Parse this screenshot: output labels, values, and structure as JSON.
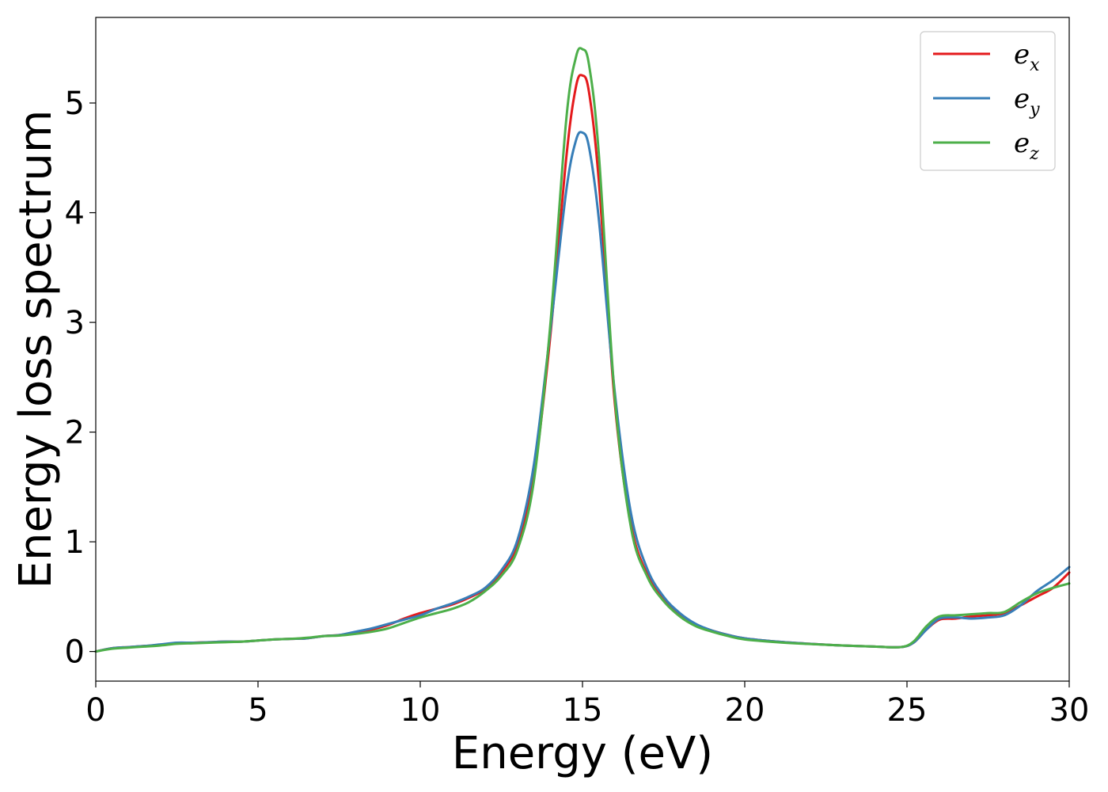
{
  "chart_data": {
    "type": "line",
    "title": "",
    "xlabel": "Energy (eV)",
    "ylabel": "Energy loss spectrum",
    "xlim": [
      0,
      30
    ],
    "ylim": [
      -0.27,
      5.78
    ],
    "xticks": [
      0,
      5,
      10,
      15,
      20,
      25,
      30
    ],
    "yticks": [
      0,
      1,
      2,
      3,
      4,
      5
    ],
    "grid": false,
    "legend_position": "top-right",
    "series": [
      {
        "name": "e",
        "subscript": "x",
        "color": "#e41a1c",
        "points": [
          [
            0,
            0.0
          ],
          [
            0.5,
            0.03
          ],
          [
            1,
            0.04
          ],
          [
            1.5,
            0.05
          ],
          [
            2,
            0.06
          ],
          [
            2.5,
            0.075
          ],
          [
            3,
            0.08
          ],
          [
            3.5,
            0.085
          ],
          [
            4,
            0.09
          ],
          [
            4.5,
            0.09
          ],
          [
            5,
            0.1
          ],
          [
            5.5,
            0.11
          ],
          [
            6,
            0.115
          ],
          [
            6.5,
            0.12
          ],
          [
            7,
            0.14
          ],
          [
            7.5,
            0.15
          ],
          [
            8,
            0.17
          ],
          [
            8.5,
            0.2
          ],
          [
            9,
            0.24
          ],
          [
            9.5,
            0.3
          ],
          [
            10,
            0.35
          ],
          [
            10.5,
            0.39
          ],
          [
            11,
            0.43
          ],
          [
            11.5,
            0.49
          ],
          [
            12,
            0.57
          ],
          [
            12.5,
            0.72
          ],
          [
            13,
            0.98
          ],
          [
            13.5,
            1.6
          ],
          [
            14,
            2.85
          ],
          [
            14.5,
            4.5
          ],
          [
            14.8,
            5.15
          ],
          [
            15,
            5.25
          ],
          [
            15.2,
            5.1
          ],
          [
            15.5,
            4.3
          ],
          [
            16,
            2.25
          ],
          [
            16.5,
            1.15
          ],
          [
            17,
            0.7
          ],
          [
            17.5,
            0.47
          ],
          [
            18,
            0.33
          ],
          [
            18.5,
            0.24
          ],
          [
            19,
            0.19
          ],
          [
            19.5,
            0.15
          ],
          [
            20,
            0.12
          ],
          [
            21,
            0.09
          ],
          [
            22,
            0.07
          ],
          [
            23,
            0.055
          ],
          [
            24,
            0.045
          ],
          [
            24.8,
            0.04
          ],
          [
            25.2,
            0.08
          ],
          [
            25.6,
            0.2
          ],
          [
            26,
            0.29
          ],
          [
            26.5,
            0.3
          ],
          [
            27,
            0.32
          ],
          [
            27.5,
            0.33
          ],
          [
            28,
            0.35
          ],
          [
            28.5,
            0.42
          ],
          [
            29,
            0.5
          ],
          [
            29.5,
            0.58
          ],
          [
            30,
            0.72
          ]
        ]
      },
      {
        "name": "e",
        "subscript": "y",
        "color": "#377eb8",
        "points": [
          [
            0,
            0.0
          ],
          [
            0.5,
            0.03
          ],
          [
            1,
            0.04
          ],
          [
            1.5,
            0.05
          ],
          [
            2,
            0.065
          ],
          [
            2.5,
            0.08
          ],
          [
            3,
            0.08
          ],
          [
            3.5,
            0.085
          ],
          [
            4,
            0.09
          ],
          [
            4.5,
            0.09
          ],
          [
            5,
            0.1
          ],
          [
            5.5,
            0.11
          ],
          [
            6,
            0.115
          ],
          [
            6.5,
            0.12
          ],
          [
            7,
            0.14
          ],
          [
            7.5,
            0.15
          ],
          [
            8,
            0.18
          ],
          [
            8.5,
            0.21
          ],
          [
            9,
            0.25
          ],
          [
            9.5,
            0.29
          ],
          [
            10,
            0.33
          ],
          [
            10.5,
            0.39
          ],
          [
            11,
            0.44
          ],
          [
            11.5,
            0.5
          ],
          [
            12,
            0.58
          ],
          [
            12.5,
            0.74
          ],
          [
            13,
            1.02
          ],
          [
            13.5,
            1.7
          ],
          [
            14,
            2.9
          ],
          [
            14.5,
            4.2
          ],
          [
            14.8,
            4.66
          ],
          [
            15,
            4.73
          ],
          [
            15.2,
            4.6
          ],
          [
            15.5,
            3.95
          ],
          [
            16,
            2.35
          ],
          [
            16.5,
            1.25
          ],
          [
            17,
            0.75
          ],
          [
            17.5,
            0.5
          ],
          [
            18,
            0.35
          ],
          [
            18.5,
            0.25
          ],
          [
            19,
            0.19
          ],
          [
            19.5,
            0.15
          ],
          [
            20,
            0.12
          ],
          [
            21,
            0.09
          ],
          [
            22,
            0.07
          ],
          [
            23,
            0.055
          ],
          [
            24,
            0.045
          ],
          [
            24.8,
            0.04
          ],
          [
            25.2,
            0.08
          ],
          [
            25.6,
            0.2
          ],
          [
            26,
            0.3
          ],
          [
            26.5,
            0.31
          ],
          [
            27,
            0.3
          ],
          [
            27.5,
            0.31
          ],
          [
            28,
            0.33
          ],
          [
            28.5,
            0.42
          ],
          [
            29,
            0.55
          ],
          [
            29.5,
            0.65
          ],
          [
            30,
            0.77
          ]
        ]
      },
      {
        "name": "e",
        "subscript": "z",
        "color": "#4daf4a",
        "points": [
          [
            0,
            0.0
          ],
          [
            0.5,
            0.025
          ],
          [
            1,
            0.035
          ],
          [
            1.5,
            0.045
          ],
          [
            2,
            0.055
          ],
          [
            2.5,
            0.07
          ],
          [
            3,
            0.075
          ],
          [
            3.5,
            0.08
          ],
          [
            4,
            0.085
          ],
          [
            4.5,
            0.09
          ],
          [
            5,
            0.1
          ],
          [
            5.5,
            0.11
          ],
          [
            6,
            0.115
          ],
          [
            6.5,
            0.125
          ],
          [
            7,
            0.14
          ],
          [
            7.5,
            0.145
          ],
          [
            8,
            0.16
          ],
          [
            8.5,
            0.18
          ],
          [
            9,
            0.21
          ],
          [
            9.5,
            0.26
          ],
          [
            10,
            0.31
          ],
          [
            10.5,
            0.35
          ],
          [
            11,
            0.39
          ],
          [
            11.5,
            0.45
          ],
          [
            12,
            0.55
          ],
          [
            12.5,
            0.69
          ],
          [
            13,
            0.93
          ],
          [
            13.5,
            1.55
          ],
          [
            14,
            2.95
          ],
          [
            14.5,
            4.85
          ],
          [
            14.8,
            5.42
          ],
          [
            15,
            5.49
          ],
          [
            15.2,
            5.35
          ],
          [
            15.5,
            4.55
          ],
          [
            16,
            2.3
          ],
          [
            16.5,
            1.12
          ],
          [
            17,
            0.68
          ],
          [
            17.5,
            0.46
          ],
          [
            18,
            0.32
          ],
          [
            18.5,
            0.23
          ],
          [
            19,
            0.18
          ],
          [
            19.5,
            0.14
          ],
          [
            20,
            0.11
          ],
          [
            21,
            0.085
          ],
          [
            22,
            0.068
          ],
          [
            23,
            0.055
          ],
          [
            24,
            0.045
          ],
          [
            24.8,
            0.04
          ],
          [
            25.2,
            0.09
          ],
          [
            25.6,
            0.23
          ],
          [
            26,
            0.32
          ],
          [
            26.5,
            0.33
          ],
          [
            27,
            0.34
          ],
          [
            27.5,
            0.35
          ],
          [
            28,
            0.36
          ],
          [
            28.5,
            0.45
          ],
          [
            29,
            0.53
          ],
          [
            29.5,
            0.58
          ],
          [
            30,
            0.62
          ]
        ]
      }
    ]
  }
}
